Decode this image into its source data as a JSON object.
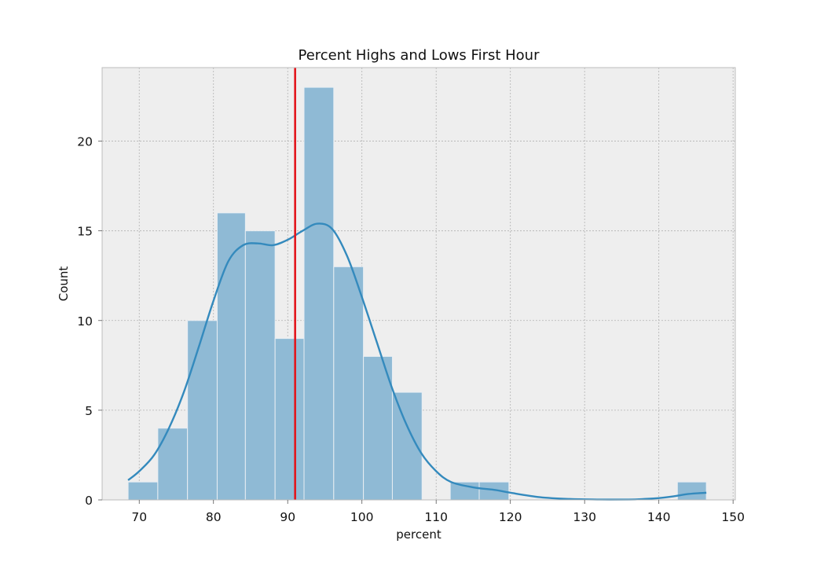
{
  "chart_data": {
    "type": "bar",
    "subtype": "histogram-with-kde",
    "title": "Percent Highs and Lows First Hour",
    "xlabel": "percent",
    "ylabel": "Count",
    "xlim": [
      65,
      150.3
    ],
    "ylim": [
      0,
      24.1
    ],
    "xticks": [
      70,
      80,
      90,
      100,
      110,
      120,
      130,
      140,
      150
    ],
    "yticks": [
      0,
      5,
      10,
      15,
      20
    ],
    "grid": true,
    "bins": [
      {
        "x0": 68.5,
        "x1": 72.5,
        "count": 1
      },
      {
        "x0": 72.5,
        "x1": 76.5,
        "count": 4
      },
      {
        "x0": 76.5,
        "x1": 80.5,
        "count": 10
      },
      {
        "x0": 80.5,
        "x1": 84.3,
        "count": 16
      },
      {
        "x0": 84.3,
        "x1": 88.3,
        "count": 15
      },
      {
        "x0": 88.3,
        "x1": 92.2,
        "count": 9
      },
      {
        "x0": 92.2,
        "x1": 96.2,
        "count": 23
      },
      {
        "x0": 96.2,
        "x1": 100.2,
        "count": 13
      },
      {
        "x0": 100.2,
        "x1": 104.1,
        "count": 8
      },
      {
        "x0": 104.1,
        "x1": 108.1,
        "count": 6
      },
      {
        "x0": 111.9,
        "x1": 115.8,
        "count": 1
      },
      {
        "x0": 115.8,
        "x1": 119.8,
        "count": 1
      },
      {
        "x0": 142.5,
        "x1": 146.4,
        "count": 1
      }
    ],
    "kde": {
      "x": [
        68.5,
        70,
        72,
        74,
        76,
        78,
        80,
        82,
        84,
        86,
        88,
        90,
        92,
        94,
        96,
        98,
        100,
        102,
        104,
        106,
        108,
        110,
        112,
        115,
        118,
        120,
        124,
        128,
        132,
        136,
        138,
        140,
        142,
        144,
        146.4
      ],
      "y": [
        1.1,
        1.6,
        2.5,
        4.0,
        6.0,
        8.5,
        11.1,
        13.3,
        14.2,
        14.3,
        14.2,
        14.5,
        15.0,
        15.4,
        15.1,
        13.6,
        11.3,
        8.8,
        6.3,
        4.2,
        2.6,
        1.6,
        1.0,
        0.7,
        0.55,
        0.4,
        0.15,
        0.05,
        0.02,
        0.02,
        0.05,
        0.1,
        0.2,
        0.33,
        0.4
      ]
    },
    "vline": {
      "x": 91,
      "color": "#e3161c"
    },
    "colors": {
      "bar_fill": "#8fbad5",
      "bar_edge": "#e8eef3",
      "kde_line": "#348abd",
      "plot_bg": "#eeeeee",
      "grid": "#b2b2b2",
      "spine": "#bcbcbc"
    }
  }
}
